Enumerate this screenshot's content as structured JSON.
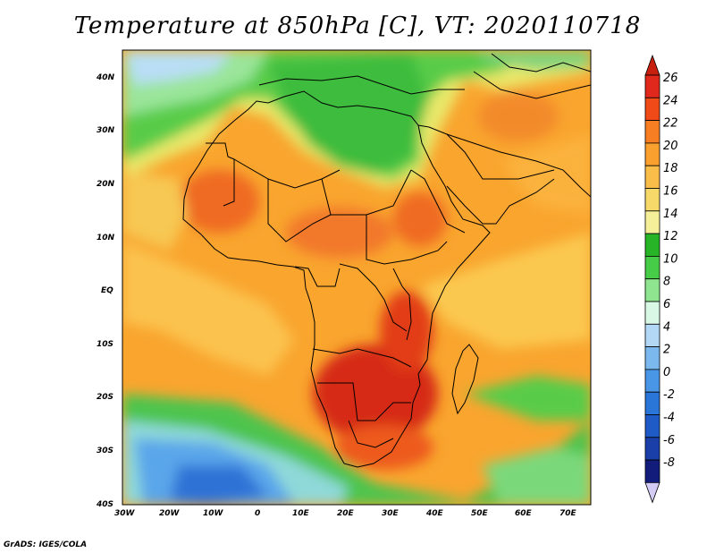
{
  "title": "Temperature at 850hPa [C], VT: 2020110718",
  "credit": "GrADS: IGES/COLA",
  "map": {
    "lat_labels": [
      "40N",
      "30N",
      "20N",
      "10N",
      "EQ",
      "10S",
      "20S",
      "30S",
      "40S"
    ],
    "lon_labels": [
      "30W",
      "20W",
      "10W",
      "0",
      "10E",
      "20E",
      "30E",
      "40E",
      "50E",
      "60E",
      "70E"
    ],
    "lon_range": [
      -30,
      75
    ],
    "lat_range": [
      -40,
      45
    ]
  },
  "colorbar": {
    "labels": [
      "26",
      "24",
      "22",
      "20",
      "18",
      "16",
      "14",
      "12",
      "10",
      "8",
      "6",
      "4",
      "2",
      "0",
      "-2",
      "-4",
      "-6",
      "-8"
    ],
    "colors": [
      "#e0281c",
      "#f04a18",
      "#f77e22",
      "#faa02e",
      "#fbbd4a",
      "#f7d96a",
      "#f6ef9a",
      "#27b527",
      "#47cc47",
      "#8fe58f",
      "#d9f8e6",
      "#b2d8f5",
      "#7ab8ee",
      "#4a96e6",
      "#2a75d8",
      "#1e5bc6",
      "#1a3fa8",
      "#121c7a"
    ],
    "top_color": "#c8200e",
    "bottom_color": "#d4ccf4"
  },
  "colors": {
    "ocean_base": "#f8a832",
    "land_hot": "#e03a18",
    "cool_green": "#3fc23f",
    "cold_blue": "#4a96e6",
    "border": "#000000"
  }
}
